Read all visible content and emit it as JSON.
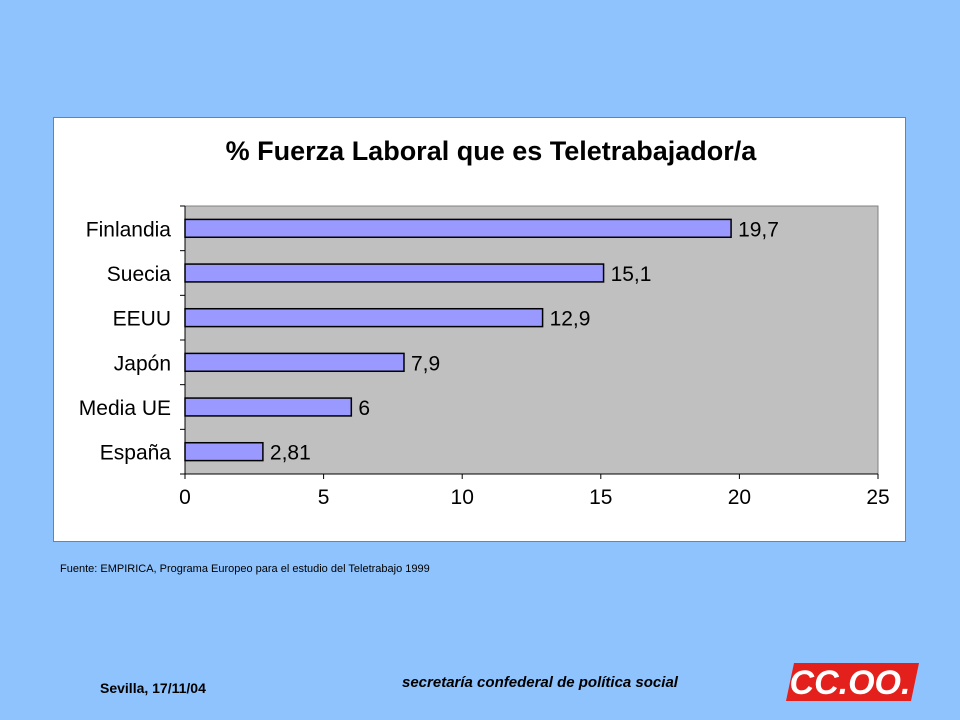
{
  "chart_data": {
    "type": "bar",
    "orientation": "horizontal",
    "title": "% Fuerza Laboral que es Teletrabajador/a",
    "categories": [
      "Finlandia",
      "Suecia",
      "EEUU",
      "Japón",
      "Media UE",
      "España"
    ],
    "values": [
      19.7,
      15.1,
      12.9,
      7.9,
      6,
      2.81
    ],
    "value_labels": [
      "19,7",
      "15,1",
      "12,9",
      "7,9",
      "6",
      "2,81"
    ],
    "xlim": [
      0,
      25
    ],
    "xticks": [
      0,
      5,
      10,
      15,
      20,
      25
    ],
    "xlabel": "",
    "ylabel": "",
    "grid": false,
    "legend": "none",
    "colors": {
      "bar_fill": "#9999ff",
      "bar_stroke": "#000000",
      "plot_background": "#c0c0c0"
    }
  },
  "source_note": "Fuente: EMPIRICA,  Programa Europeo para el estudio del Teletrabajo  1999",
  "footer": {
    "date": "Sevilla, 17/11/04",
    "organization": "secretaría confederal de política social",
    "logo_text": "CC.OO."
  },
  "colors": {
    "page_background": "#8fc3fd",
    "logo_red": "#e3201b"
  }
}
